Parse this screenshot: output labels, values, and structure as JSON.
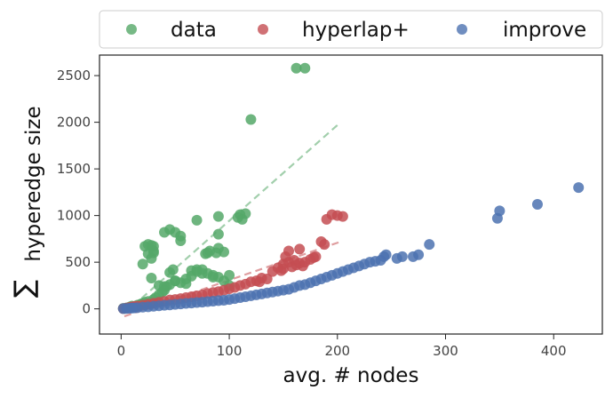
{
  "chart_data": {
    "type": "scatter",
    "xlabel": "avg. # nodes",
    "ylabel_symbol": "∑",
    "ylabel": "hyperedge size",
    "xlim": [
      -20,
      445
    ],
    "ylim": [
      -270,
      2720
    ],
    "xticks": [
      0,
      100,
      200,
      300,
      400
    ],
    "yticks": [
      0,
      500,
      1000,
      1500,
      2000,
      2500
    ],
    "grid": false,
    "legend": {
      "placement": "top-outside",
      "entries": [
        "data",
        "hyperlap+",
        "improve"
      ]
    },
    "series": [
      {
        "name": "data",
        "color": "#55a868",
        "trend": [
          [
            3,
            -50
          ],
          [
            203,
            2000
          ]
        ],
        "points": [
          [
            2,
            5
          ],
          [
            5,
            10
          ],
          [
            8,
            20
          ],
          [
            10,
            30
          ],
          [
            12,
            25
          ],
          [
            15,
            40
          ],
          [
            18,
            50
          ],
          [
            20,
            60
          ],
          [
            22,
            70
          ],
          [
            25,
            80
          ],
          [
            28,
            60
          ],
          [
            30,
            100
          ],
          [
            32,
            120
          ],
          [
            35,
            150
          ],
          [
            38,
            180
          ],
          [
            40,
            200
          ],
          [
            42,
            240
          ],
          [
            45,
            260
          ],
          [
            50,
            300
          ],
          [
            55,
            280
          ],
          [
            60,
            320
          ],
          [
            65,
            350
          ],
          [
            70,
            400
          ],
          [
            75,
            420
          ],
          [
            80,
            380
          ],
          [
            85,
            360
          ],
          [
            90,
            340
          ],
          [
            95,
            300
          ],
          [
            100,
            250
          ],
          [
            20,
            480
          ],
          [
            22,
            670
          ],
          [
            25,
            690
          ],
          [
            28,
            680
          ],
          [
            30,
            670
          ],
          [
            30,
            600
          ],
          [
            30,
            620
          ],
          [
            25,
            590
          ],
          [
            28,
            540
          ],
          [
            28,
            330
          ],
          [
            35,
            250
          ],
          [
            40,
            240
          ],
          [
            45,
            390
          ],
          [
            48,
            420
          ],
          [
            50,
            300
          ],
          [
            40,
            820
          ],
          [
            45,
            850
          ],
          [
            50,
            820
          ],
          [
            55,
            780
          ],
          [
            55,
            730
          ],
          [
            60,
            270
          ],
          [
            65,
            410
          ],
          [
            70,
            420
          ],
          [
            70,
            950
          ],
          [
            75,
            380
          ],
          [
            78,
            590
          ],
          [
            80,
            600
          ],
          [
            82,
            620
          ],
          [
            85,
            340
          ],
          [
            88,
            600
          ],
          [
            90,
            990
          ],
          [
            90,
            800
          ],
          [
            95,
            610
          ],
          [
            90,
            650
          ],
          [
            100,
            360
          ],
          [
            108,
            980
          ],
          [
            110,
            1010
          ],
          [
            112,
            960
          ],
          [
            115,
            1020
          ],
          [
            120,
            2030
          ],
          [
            162,
            2580
          ],
          [
            170,
            2580
          ]
        ]
      },
      {
        "name": "hyperlap+",
        "color": "#c44e52",
        "trend": [
          [
            3,
            -80
          ],
          [
            203,
            720
          ]
        ],
        "points": [
          [
            2,
            3
          ],
          [
            5,
            8
          ],
          [
            8,
            15
          ],
          [
            10,
            20
          ],
          [
            12,
            25
          ],
          [
            15,
            30
          ],
          [
            20,
            40
          ],
          [
            25,
            50
          ],
          [
            30,
            60
          ],
          [
            35,
            70
          ],
          [
            40,
            80
          ],
          [
            45,
            95
          ],
          [
            50,
            100
          ],
          [
            55,
            110
          ],
          [
            60,
            120
          ],
          [
            65,
            130
          ],
          [
            70,
            140
          ],
          [
            75,
            150
          ],
          [
            80,
            165
          ],
          [
            85,
            175
          ],
          [
            90,
            185
          ],
          [
            95,
            200
          ],
          [
            100,
            215
          ],
          [
            105,
            230
          ],
          [
            110,
            250
          ],
          [
            115,
            265
          ],
          [
            120,
            290
          ],
          [
            125,
            300
          ],
          [
            128,
            290
          ],
          [
            130,
            330
          ],
          [
            135,
            320
          ],
          [
            140,
            400
          ],
          [
            145,
            440
          ],
          [
            148,
            410
          ],
          [
            150,
            480
          ],
          [
            150,
            430
          ],
          [
            152,
            560
          ],
          [
            155,
            620
          ],
          [
            155,
            500
          ],
          [
            158,
            450
          ],
          [
            160,
            520
          ],
          [
            162,
            470
          ],
          [
            165,
            490
          ],
          [
            168,
            460
          ],
          [
            165,
            640
          ],
          [
            170,
            500
          ],
          [
            175,
            530
          ],
          [
            178,
            550
          ],
          [
            180,
            560
          ],
          [
            185,
            720
          ],
          [
            188,
            690
          ],
          [
            190,
            960
          ],
          [
            195,
            1010
          ],
          [
            200,
            1000
          ],
          [
            205,
            990
          ]
        ]
      },
      {
        "name": "improve",
        "color": "#4c72b0",
        "trend": null,
        "points": [
          [
            2,
            2
          ],
          [
            5,
            4
          ],
          [
            8,
            6
          ],
          [
            10,
            8
          ],
          [
            12,
            10
          ],
          [
            15,
            12
          ],
          [
            20,
            18
          ],
          [
            25,
            22
          ],
          [
            30,
            28
          ],
          [
            35,
            32
          ],
          [
            40,
            38
          ],
          [
            45,
            42
          ],
          [
            50,
            48
          ],
          [
            55,
            52
          ],
          [
            60,
            58
          ],
          [
            65,
            62
          ],
          [
            70,
            68
          ],
          [
            75,
            72
          ],
          [
            80,
            78
          ],
          [
            85,
            82
          ],
          [
            90,
            88
          ],
          [
            95,
            92
          ],
          [
            100,
            100
          ],
          [
            105,
            110
          ],
          [
            110,
            120
          ],
          [
            115,
            130
          ],
          [
            120,
            140
          ],
          [
            125,
            150
          ],
          [
            130,
            160
          ],
          [
            135,
            170
          ],
          [
            140,
            180
          ],
          [
            145,
            190
          ],
          [
            150,
            200
          ],
          [
            155,
            210
          ],
          [
            160,
            230
          ],
          [
            165,
            250
          ],
          [
            170,
            260
          ],
          [
            175,
            280
          ],
          [
            180,
            300
          ],
          [
            185,
            320
          ],
          [
            190,
            340
          ],
          [
            195,
            360
          ],
          [
            200,
            380
          ],
          [
            205,
            400
          ],
          [
            210,
            420
          ],
          [
            215,
            440
          ],
          [
            220,
            460
          ],
          [
            225,
            480
          ],
          [
            230,
            500
          ],
          [
            235,
            510
          ],
          [
            240,
            520
          ],
          [
            245,
            580
          ],
          [
            243,
            560
          ],
          [
            255,
            540
          ],
          [
            260,
            560
          ],
          [
            270,
            560
          ],
          [
            275,
            580
          ],
          [
            285,
            690
          ],
          [
            348,
            970
          ],
          [
            350,
            1050
          ],
          [
            385,
            1120
          ],
          [
            423,
            1300
          ]
        ]
      }
    ]
  }
}
